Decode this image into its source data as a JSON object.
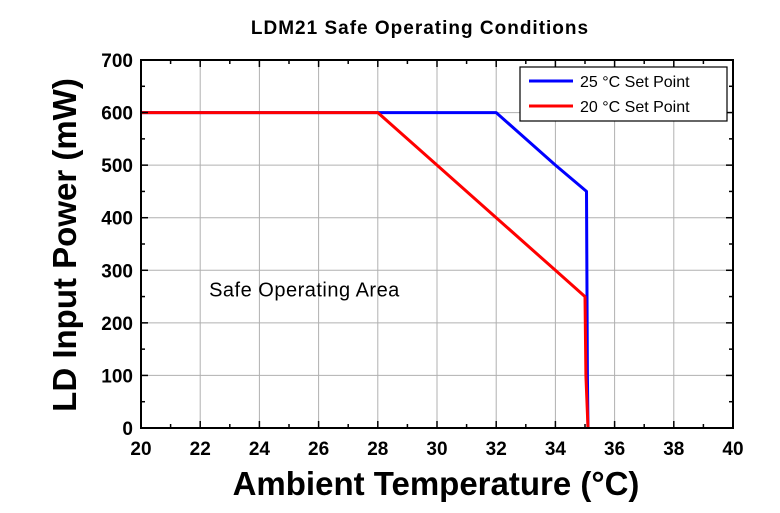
{
  "chart_data": {
    "type": "line",
    "title": "LDM21 Safe Operating Conditions",
    "xlabel": "Ambient Temperature (°C)",
    "ylabel": "LD Input Power (mW)",
    "xlim": [
      20,
      40
    ],
    "ylim": [
      0,
      700
    ],
    "xticks": [
      20,
      22,
      24,
      26,
      28,
      30,
      32,
      34,
      36,
      38,
      40
    ],
    "yticks": [
      0,
      100,
      200,
      300,
      400,
      500,
      600,
      700
    ],
    "grid": true,
    "legend_position": "top-right",
    "annotation": "Safe Operating Area",
    "annotation_pos": [
      22.3,
      250
    ],
    "series": [
      {
        "name": "25 °C Set Point",
        "color": "#0000ff",
        "x": [
          20,
          32,
          34,
          35.05,
          35.08,
          35.1
        ],
        "y": [
          600,
          600,
          500,
          450,
          100,
          0
        ]
      },
      {
        "name": "20 °C Set Point",
        "color": "#ff0000",
        "x": [
          20,
          28,
          30,
          32,
          34,
          35,
          35.03,
          35.1
        ],
        "y": [
          600,
          600,
          500,
          400,
          300,
          250,
          100,
          0
        ]
      }
    ]
  }
}
